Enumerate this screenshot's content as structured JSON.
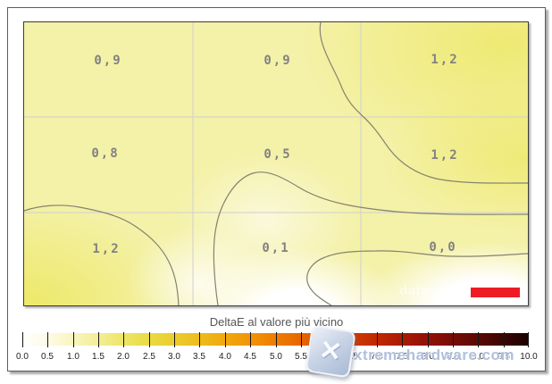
{
  "plot": {
    "cells": [
      {
        "row": "top",
        "col": "left",
        "label": "0,9",
        "value": 0.9
      },
      {
        "row": "top",
        "col": "center",
        "label": "0,9",
        "value": 0.9
      },
      {
        "row": "top",
        "col": "right",
        "label": "1,2",
        "value": 1.2
      },
      {
        "row": "middle",
        "col": "left",
        "label": "0,8",
        "value": 0.8
      },
      {
        "row": "middle",
        "col": "center",
        "label": "0,5",
        "value": 0.5
      },
      {
        "row": "middle",
        "col": "right",
        "label": "1,2",
        "value": 1.2
      },
      {
        "row": "bottom",
        "col": "left",
        "label": "1,2",
        "value": 1.2
      },
      {
        "row": "bottom",
        "col": "center",
        "label": "0,1",
        "value": 0.1
      },
      {
        "row": "bottom",
        "col": "right",
        "label": "0,0",
        "value": 0.0
      }
    ],
    "brand": {
      "name": "datacolor",
      "logo_color": "#ed1c24"
    }
  },
  "scale": {
    "title": "DeltaE al valore più vicino",
    "ticks": [
      "0.0",
      "0.5",
      "1.0",
      "1.5",
      "2.0",
      "2.5",
      "3.0",
      "3.5",
      "4.0",
      "4.5",
      "5.0",
      "5.5",
      "6.0",
      "6.5",
      "7.0",
      "7.5",
      "8.0",
      "8.5",
      "9.0",
      "9.5",
      "10.0"
    ]
  },
  "watermark": {
    "text": "xtremehardware.com",
    "icon": "x-logo",
    "color": "#acbdda"
  },
  "chart_data": {
    "type": "heatmap",
    "title": "DeltaE al valore più vicino",
    "grid": {
      "rows": 3,
      "cols": 3,
      "grid_lines": true,
      "contour_lines": true
    },
    "categories_x": [
      "left",
      "center",
      "right"
    ],
    "categories_y": [
      "top",
      "middle",
      "bottom"
    ],
    "values": [
      [
        0.9,
        0.9,
        1.2
      ],
      [
        0.8,
        0.5,
        1.2
      ],
      [
        1.2,
        0.1,
        0.0
      ]
    ],
    "value_labels": [
      [
        "0,9",
        "0,9",
        "1,2"
      ],
      [
        "0,8",
        "0,5",
        "1,2"
      ],
      [
        "1,2",
        "0,1",
        "0,0"
      ]
    ],
    "colorbar": {
      "min": 0.0,
      "max": 10.0,
      "step": 0.5,
      "position": "bottom",
      "colors_low_to_high": [
        "#ffffff",
        "#f9f5c0",
        "#ede566",
        "#ebcd2d",
        "#f0a90e",
        "#ef7d00",
        "#dc5100",
        "#c02800",
        "#921106",
        "#5a0804",
        "#1a0100"
      ]
    }
  }
}
